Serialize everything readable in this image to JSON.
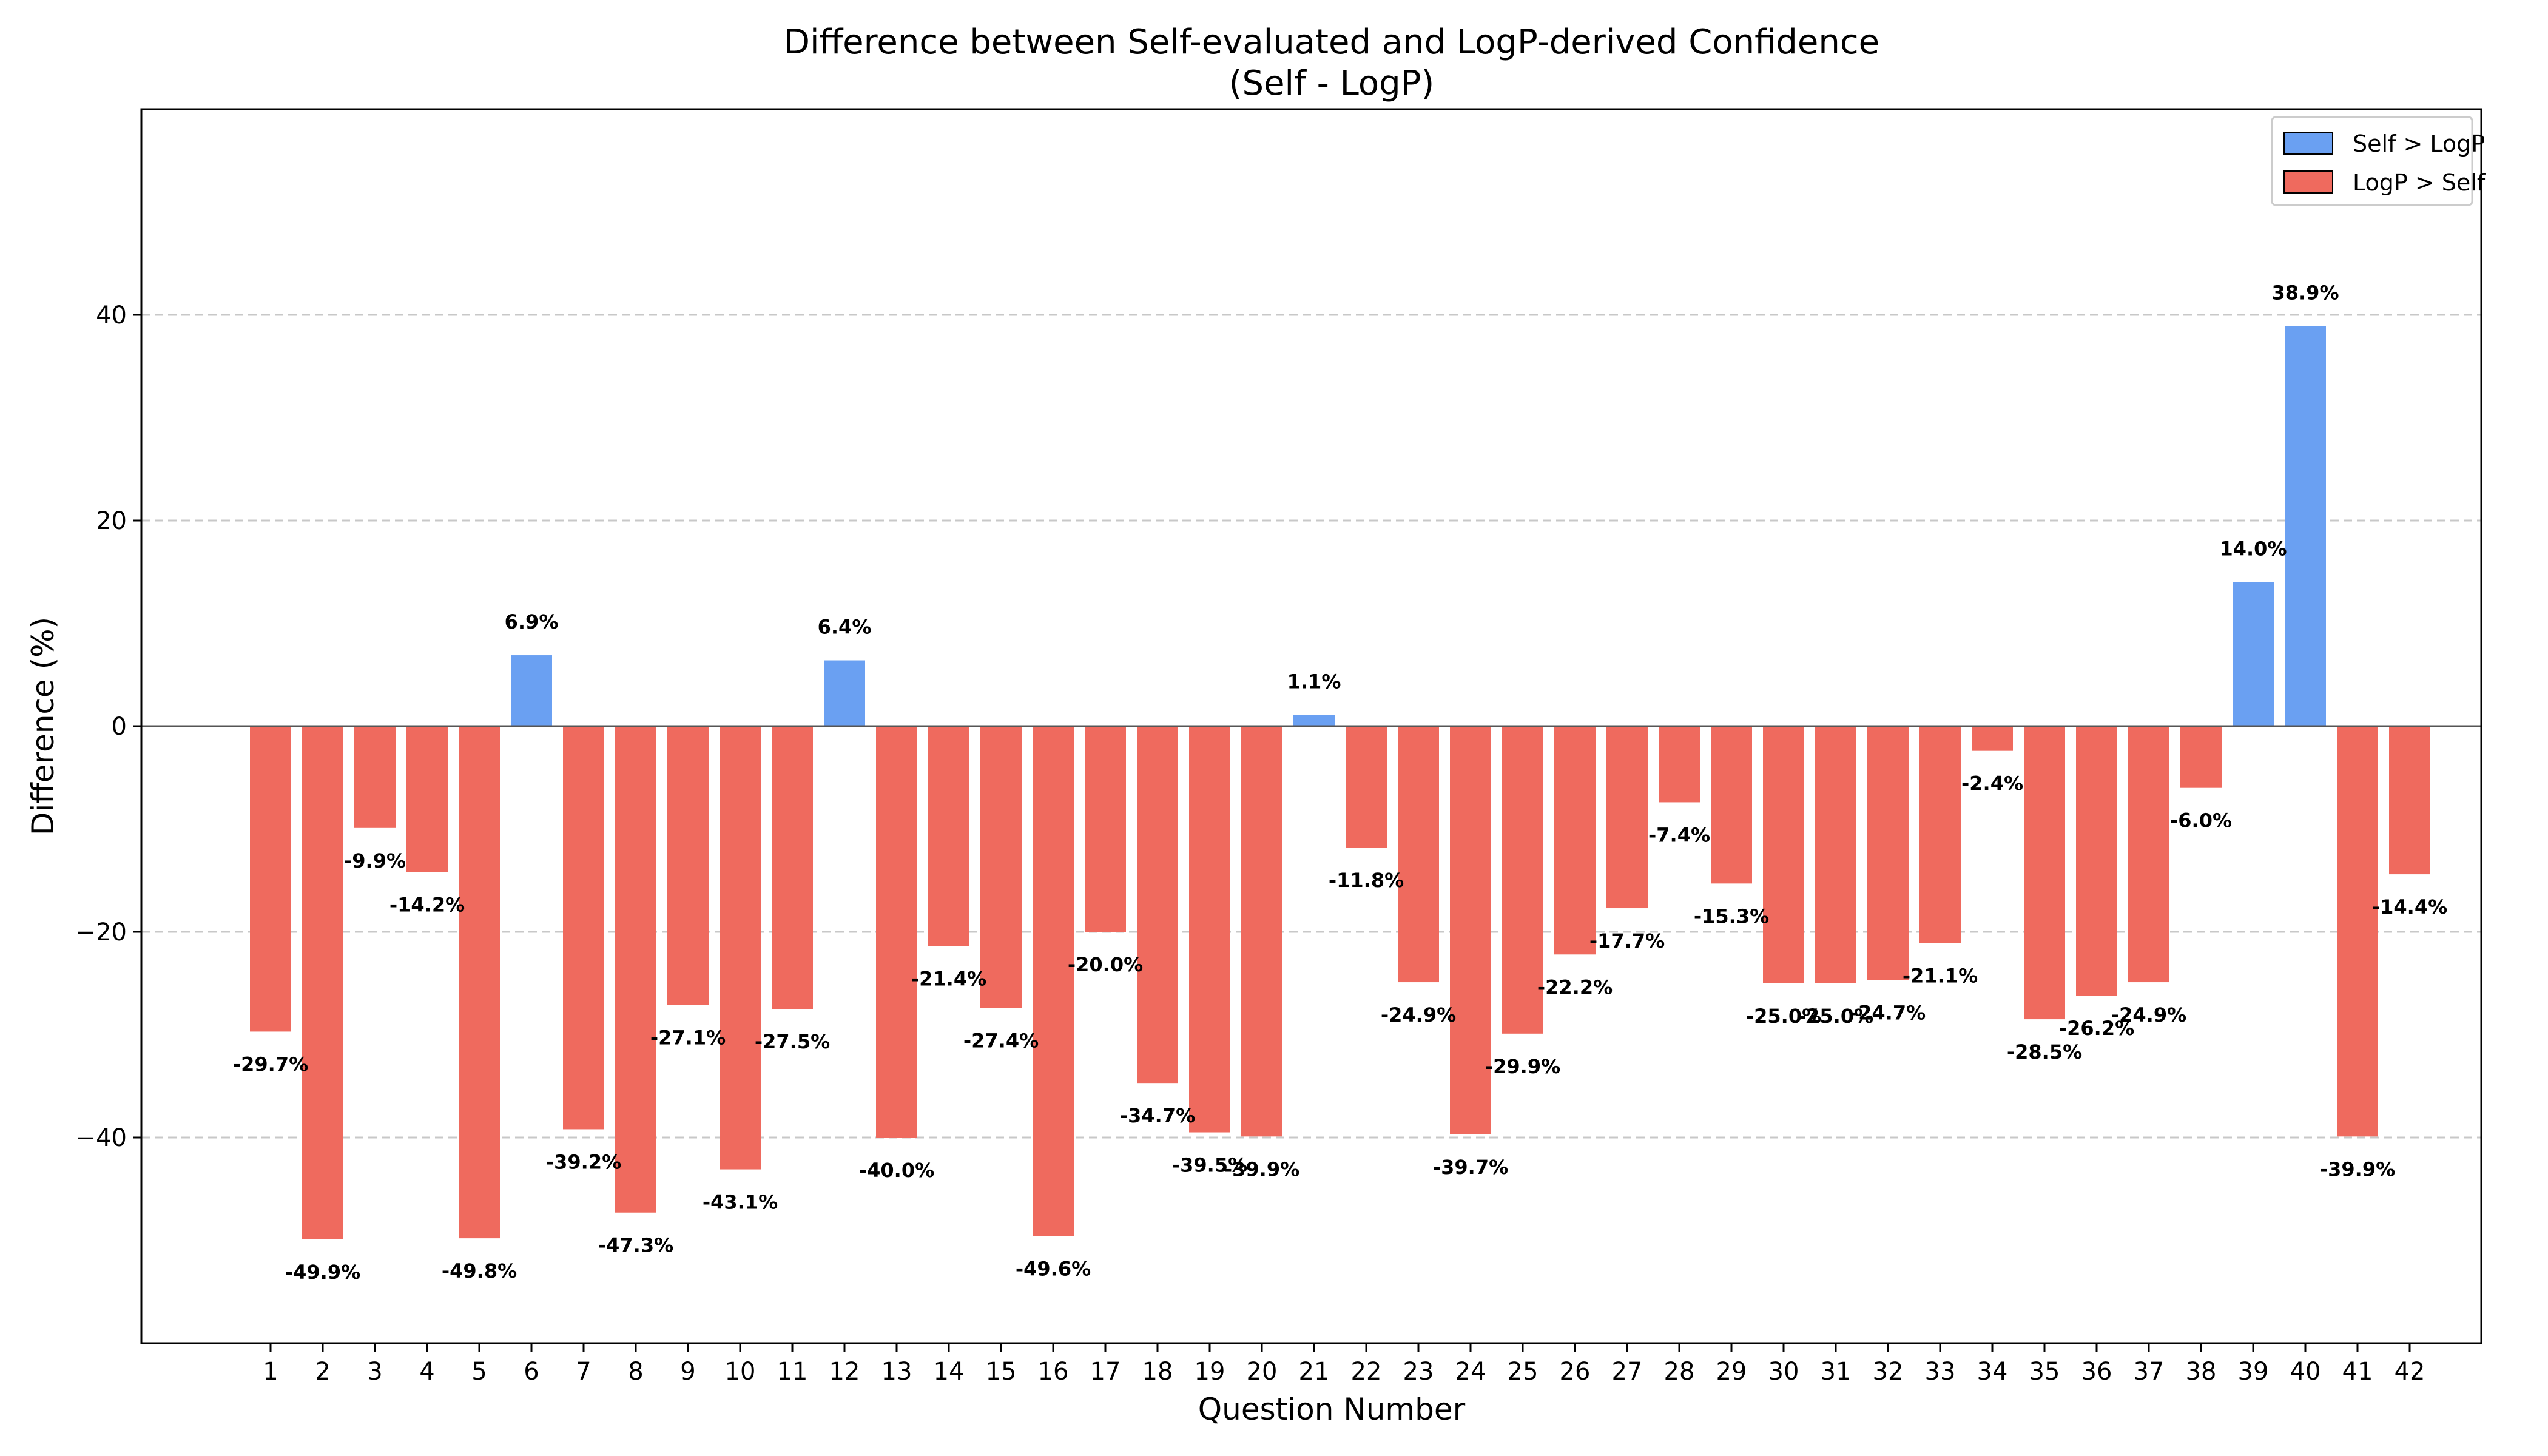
{
  "chart_data": {
    "type": "bar",
    "title": "Difference between Self-evaluated and LogP-derived Confidence",
    "subtitle": "(Self - LogP)",
    "xlabel": "Question Number",
    "ylabel": "Difference (%)",
    "ylim": [
      -60,
      60
    ],
    "yticks": [
      -40,
      -20,
      0,
      20,
      40
    ],
    "grid": "y-dashed",
    "legend_position": "top-right",
    "categories": [
      "1",
      "2",
      "3",
      "4",
      "5",
      "6",
      "7",
      "8",
      "9",
      "10",
      "11",
      "12",
      "13",
      "14",
      "15",
      "16",
      "17",
      "18",
      "19",
      "20",
      "21",
      "22",
      "23",
      "24",
      "25",
      "26",
      "27",
      "28",
      "29",
      "30",
      "31",
      "32",
      "33",
      "34",
      "35",
      "36",
      "37",
      "38",
      "39",
      "40",
      "41",
      "42"
    ],
    "values": [
      -29.7,
      -49.9,
      -9.9,
      -14.2,
      -49.8,
      6.9,
      -39.2,
      -47.3,
      -27.1,
      -43.1,
      -27.5,
      6.4,
      -40.0,
      -21.4,
      -27.4,
      -49.6,
      -20.0,
      -34.7,
      -39.5,
      -39.9,
      1.1,
      -11.8,
      -24.9,
      -39.7,
      -29.9,
      -22.2,
      -17.7,
      -7.4,
      -15.3,
      -25.0,
      -25.0,
      -24.7,
      -21.1,
      -2.4,
      -28.5,
      -26.2,
      -24.9,
      -6.0,
      14.0,
      38.9,
      -39.9,
      -14.4
    ],
    "labels": [
      "-29.7%",
      "-49.9%",
      "-9.9%",
      "-14.2%",
      "-49.8%",
      "6.9%",
      "-39.2%",
      "-47.3%",
      "-27.1%",
      "-43.1%",
      "-27.5%",
      "6.4%",
      "-40.0%",
      "-21.4%",
      "-27.4%",
      "-49.6%",
      "-20.0%",
      "-34.7%",
      "-39.5%",
      "-39.9%",
      "1.1%",
      "-11.8%",
      "-24.9%",
      "-39.7%",
      "-29.9%",
      "-22.2%",
      "-17.7%",
      "-7.4%",
      "-15.3%",
      "-25.0%",
      "-25.0%",
      "-24.7%",
      "-21.1%",
      "-2.4%",
      "-28.5%",
      "-26.2%",
      "-24.9%",
      "-6.0%",
      "14.0%",
      "38.9%",
      "-39.9%",
      "-14.4%"
    ],
    "series": [
      {
        "name": "Self > LogP",
        "color": "#6aa0f2"
      },
      {
        "name": "LogP > Self",
        "color": "#ef6a5e"
      }
    ]
  }
}
